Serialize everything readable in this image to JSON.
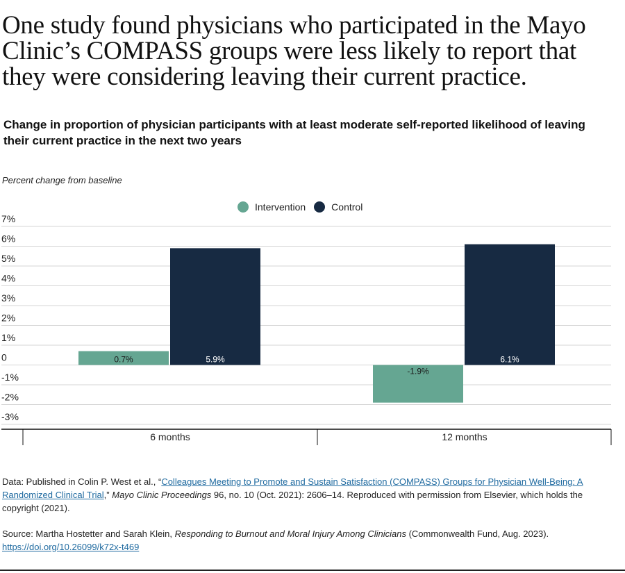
{
  "header": {
    "title": "One study found physicians who participated in the Mayo Clinic’s COMPASS groups were less likely to report that they were considering leaving their current practice.",
    "subtitle": "Change in proportion of physician participants with at least moderate self-reported likelihood of leaving their current practice in the next two years"
  },
  "chart_data": {
    "type": "bar",
    "categories": [
      "6 months",
      "12 months"
    ],
    "series": [
      {
        "name": "Intervention",
        "values": [
          0.7,
          -1.9
        ],
        "labels": [
          "0.7%",
          "-1.9%"
        ],
        "color": "#65a692"
      },
      {
        "name": "Control",
        "values": [
          5.9,
          6.1
        ],
        "labels": [
          "5.9%",
          "6.1%"
        ],
        "color": "#172a42"
      }
    ],
    "ylabel": "Percent change from baseline",
    "ylim": [
      -3,
      7
    ],
    "yticks": [
      7,
      6,
      5,
      4,
      3,
      2,
      1,
      0,
      -1,
      -2,
      -3
    ],
    "ytick_labels": [
      "7%",
      "6%",
      "5%",
      "4%",
      "3%",
      "2%",
      "1%",
      "0",
      "-1%",
      "-2%",
      "-3%"
    ],
    "grid": true,
    "legend": "top-center"
  },
  "notes": {
    "data_prefix": "Data: Published in Colin P. West et al., “",
    "data_link": "Colleagues Meeting to Promote and Sustain Satisfaction (COMPASS) Groups for Physician Well-Being: A Randomized Clinical Trial",
    "data_mid": ",” ",
    "data_journal": "Mayo Clinic Proceedings",
    "data_suffix": " 96, no. 10 (Oct. 2021): 2606–14. Reproduced with permission from Elsevier, which holds the copyright (2021).",
    "source_prefix": "Source: Martha Hostetter and Sarah Klein, ",
    "source_title": "Responding to Burnout and Moral Injury Among Clinicians",
    "source_suffix": " (Commonwealth Fund, Aug. 2023).",
    "source_link": "https://doi.org/10.26099/k72x-t469"
  }
}
